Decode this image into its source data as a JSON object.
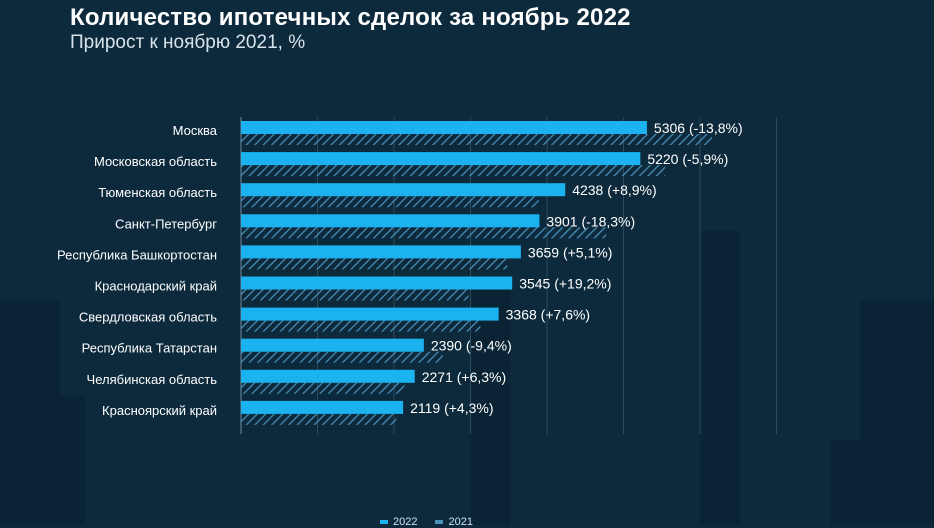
{
  "header": {
    "title": "Количество ипотечных сделок за ноябрь 2022",
    "subtitle": "Прирост к ноябрю 2021, %"
  },
  "colors": {
    "bar_2022": "#1ab3f0",
    "hatch_2021": "#4a90b8",
    "background": "#0d2a3d",
    "grid": "#2c4a5c"
  },
  "chart_data": {
    "type": "bar",
    "orientation": "horizontal",
    "title": "Количество ипотечных сделок за ноябрь 2022",
    "subtitle": "Прирост к ноябрю 2021, %",
    "xlim": [
      0,
      7000
    ],
    "grid": true,
    "legend": "bottom",
    "categories": [
      "Москва",
      "Московская область",
      "Тюменская область",
      "Санкт-Петербург",
      "Республика Башкортостан",
      "Краснодарский край",
      "Свердловская область",
      "Республика Татарстан",
      "Челябинская область",
      "Красноярский край"
    ],
    "series": [
      {
        "name": "2022",
        "values": [
          5306,
          5220,
          4238,
          3901,
          3659,
          3545,
          3368,
          2390,
          2271,
          2119
        ]
      },
      {
        "name": "2021",
        "values": [
          6155,
          5547,
          3892,
          4774,
          3482,
          2974,
          3130,
          2638,
          2136,
          2032
        ]
      }
    ],
    "data_labels": [
      "5306 (-13,8%)",
      "5220 (-5,9%)",
      "4238 (+8,9%)",
      "3901 (-18,3%)",
      "3659 (+5,1%)",
      "3545 (+19,2%)",
      "3368 (+7,6%)",
      "2390 (-9,4%)",
      "2271 (+6,3%)",
      "2119 (+4,3%)"
    ]
  }
}
